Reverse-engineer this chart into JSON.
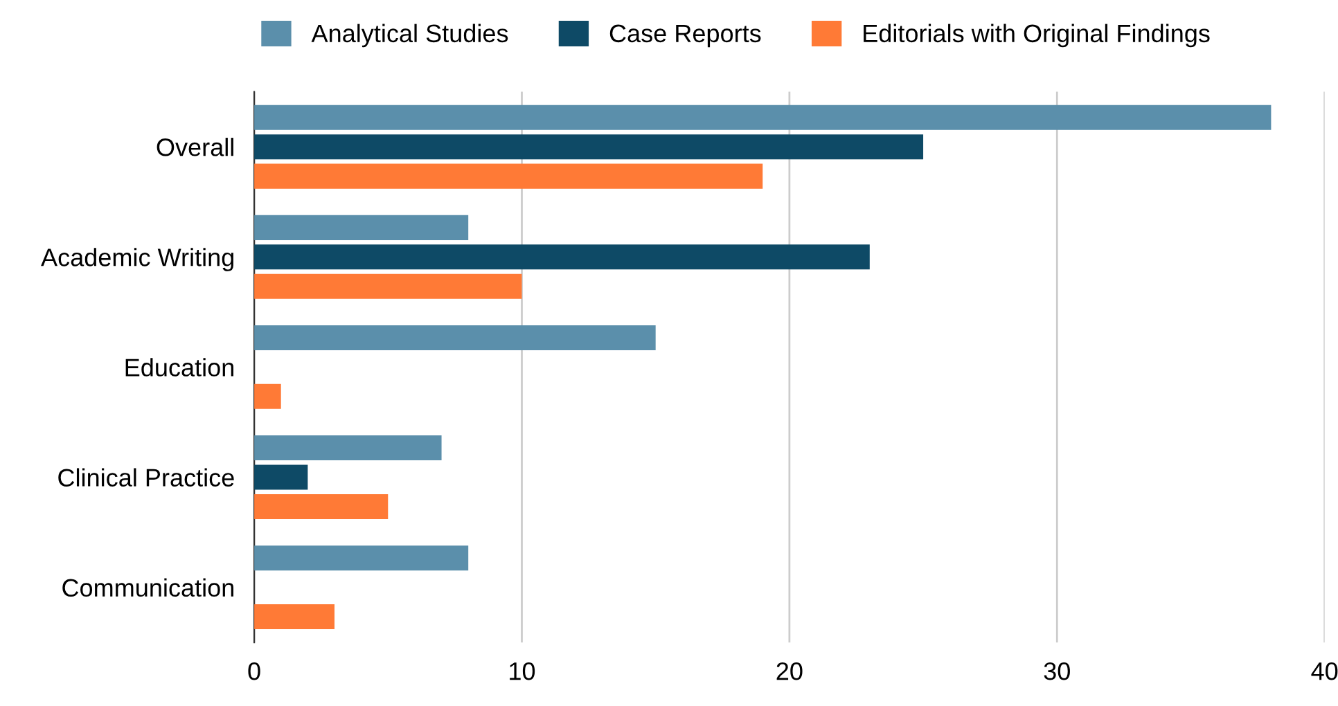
{
  "chart_data": {
    "type": "bar",
    "orientation": "horizontal",
    "categories": [
      "Overall",
      "Academic Writing",
      "Education",
      "Clinical Practice",
      "Communication"
    ],
    "series": [
      {
        "name": "Analytical Studies",
        "color": "#5b8fab",
        "values": [
          38,
          8,
          15,
          7,
          8
        ]
      },
      {
        "name": "Case Reports",
        "color": "#0e4a66",
        "values": [
          25,
          23,
          0,
          2,
          0
        ]
      },
      {
        "name": "Editorials with Original Findings",
        "color": "#ff7a36",
        "values": [
          19,
          10,
          1,
          5,
          3
        ]
      }
    ],
    "xlim": [
      0,
      40
    ],
    "xticks": [
      0,
      10,
      20,
      30,
      40
    ],
    "grid": "x",
    "legend": "top"
  }
}
